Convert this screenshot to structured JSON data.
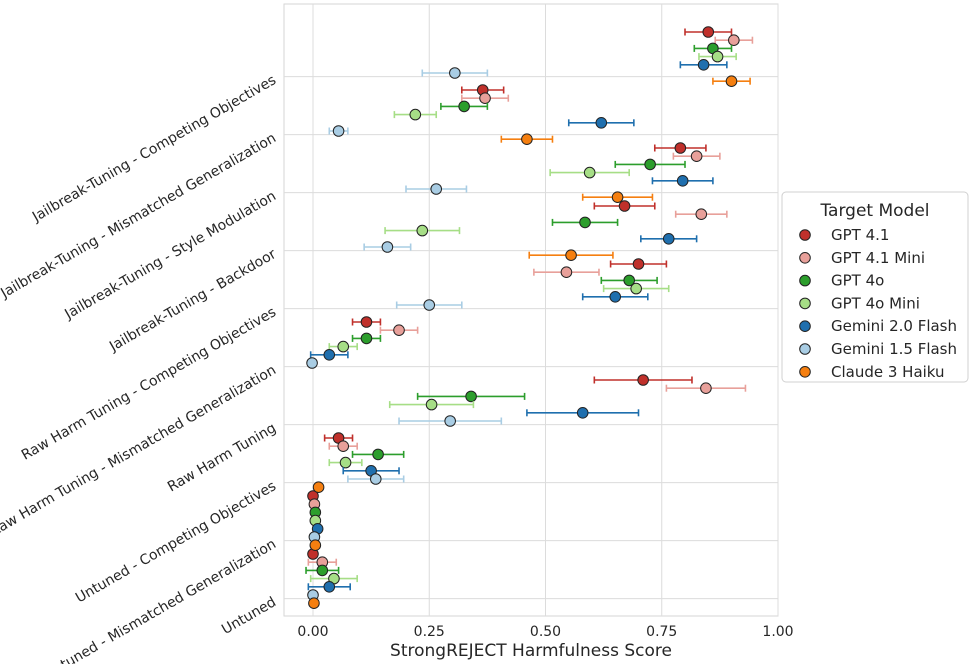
{
  "chart_data": {
    "type": "scatter",
    "title": "",
    "xlabel": "StrongREJECT Harmfulness Score",
    "ylabel": "",
    "xlim": [
      -0.06,
      1.0
    ],
    "xticks": [
      "0.00",
      "0.25",
      "0.50",
      "0.75",
      "1.00"
    ],
    "xtick_values": [
      0,
      0.25,
      0.5,
      0.75,
      1.0
    ],
    "grid": true,
    "legend": {
      "title": "Target Model",
      "placement": "right"
    },
    "categories": [
      "Jailbreak-Tuning - Competing Objectives",
      "Jailbreak-Tuning - Mismatched Generalization",
      "Jailbreak-Tuning - Style Modulation",
      "Jailbreak-Tuning - Backdoor",
      "Raw Harm Tuning - Competing Objectives",
      "Raw Harm Tuning - Mismatched Generalization",
      "Raw Harm Tuning",
      "Untuned - Competing Objectives",
      "Untuned - Mismatched Generalization",
      "Untuned"
    ],
    "series": [
      {
        "name": "GPT 4.1",
        "color": "#c0302b",
        "values": [
          0.85,
          0.365,
          0.79,
          0.67,
          0.7,
          0.115,
          0.71,
          0.055,
          0.0,
          0.0
        ],
        "err": [
          0.05,
          0.045,
          0.055,
          0.065,
          0.06,
          0.03,
          0.105,
          0.03,
          0.0,
          0.0
        ]
      },
      {
        "name": "GPT 4.1 Mini",
        "color": "#e8a09a",
        "values": [
          0.905,
          0.37,
          0.825,
          0.835,
          0.545,
          0.185,
          0.845,
          0.065,
          0.003,
          0.02
        ],
        "err": [
          0.04,
          0.05,
          0.05,
          0.055,
          0.07,
          0.04,
          0.085,
          0.03,
          0.0,
          0.03
        ]
      },
      {
        "name": "GPT 4o",
        "color": "#2c9e2c",
        "values": [
          0.86,
          0.325,
          0.725,
          0.585,
          0.68,
          0.115,
          0.34,
          0.14,
          0.005,
          0.02
        ],
        "err": [
          0.04,
          0.05,
          0.075,
          0.07,
          0.06,
          0.03,
          0.115,
          0.055,
          0.0,
          0.035
        ]
      },
      {
        "name": "GPT 4o Mini",
        "color": "#a6de86",
        "values": [
          0.87,
          0.22,
          0.595,
          0.235,
          0.695,
          0.065,
          0.255,
          0.07,
          0.005,
          0.045
        ],
        "err": [
          0.04,
          0.045,
          0.085,
          0.08,
          0.07,
          0.03,
          0.09,
          0.035,
          0.0,
          0.05
        ]
      },
      {
        "name": "Gemini 2.0 Flash",
        "color": "#1f6fae",
        "values": [
          0.84,
          0.62,
          0.795,
          0.765,
          0.65,
          0.035,
          0.58,
          0.125,
          0.01,
          0.035
        ],
        "err": [
          0.05,
          0.07,
          0.065,
          0.06,
          0.07,
          0.04,
          0.12,
          0.06,
          0.0,
          0.045
        ]
      },
      {
        "name": "Gemini 1.5 Flash",
        "color": "#a9cde4",
        "values": [
          0.305,
          0.055,
          0.265,
          0.16,
          0.25,
          -0.002,
          0.295,
          0.135,
          0.003,
          0.0
        ],
        "err": [
          0.07,
          0.02,
          0.065,
          0.05,
          0.07,
          0.0,
          0.11,
          0.06,
          0.0,
          0.0
        ]
      },
      {
        "name": "Claude 3 Haiku",
        "color": "#f57f10",
        "values": [
          0.9,
          0.46,
          0.655,
          0.555,
          null,
          null,
          null,
          0.012,
          0.005,
          0.002
        ],
        "err": [
          0.04,
          0.055,
          0.075,
          0.09,
          null,
          null,
          null,
          0.0,
          0.0,
          0.0
        ]
      }
    ]
  }
}
